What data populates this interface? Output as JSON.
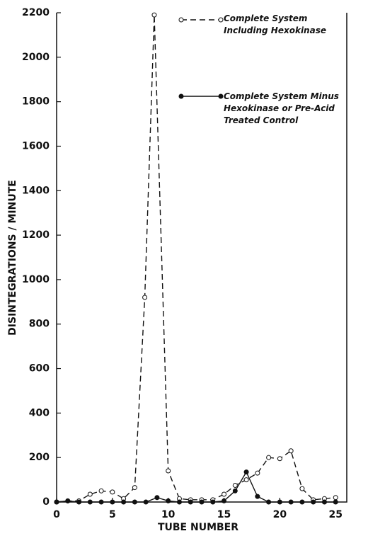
{
  "chart_data": {
    "type": "line",
    "xlabel": "TUBE NUMBER",
    "ylabel": "DISINTEGRATIONS / MINUTE",
    "xlim": [
      0,
      26
    ],
    "xticks": [
      0,
      5,
      10,
      15,
      20,
      25
    ],
    "ylim": [
      0,
      2200
    ],
    "yticks": [
      0,
      200,
      400,
      600,
      800,
      1000,
      1200,
      1400,
      1600,
      1800,
      2000,
      2200
    ],
    "legend": "upper right",
    "series": [
      {
        "name": "Complete System Including Hexokinase",
        "color": "#111111",
        "marker": "open",
        "linestyle": "dashed",
        "x": [
          0,
          1,
          2,
          3,
          4,
          5,
          6,
          7,
          7.9,
          8.75,
          10,
          11,
          12,
          13,
          14,
          15,
          16,
          17,
          18,
          19,
          20,
          21,
          22,
          23,
          24,
          25
        ],
        "values": [
          0,
          5,
          5,
          35,
          50,
          45,
          15,
          65,
          920,
          2190,
          140,
          15,
          10,
          10,
          10,
          35,
          75,
          100,
          130,
          200,
          195,
          230,
          60,
          10,
          15,
          20
        ]
      },
      {
        "name": "Complete System Minus Hexokinase or Pre-Acid Treated Control",
        "color": "#111111",
        "marker": "filled",
        "linestyle": "solid",
        "x": [
          0,
          1,
          2,
          3,
          4,
          5,
          6,
          7,
          8,
          9,
          10,
          11,
          12,
          13,
          14,
          15,
          16,
          17,
          18,
          19,
          20,
          21,
          22,
          23,
          24,
          25
        ],
        "values": [
          0,
          5,
          0,
          0,
          0,
          0,
          0,
          0,
          0,
          20,
          5,
          0,
          0,
          0,
          0,
          5,
          50,
          135,
          25,
          0,
          0,
          0,
          0,
          0,
          0,
          0
        ]
      }
    ]
  }
}
